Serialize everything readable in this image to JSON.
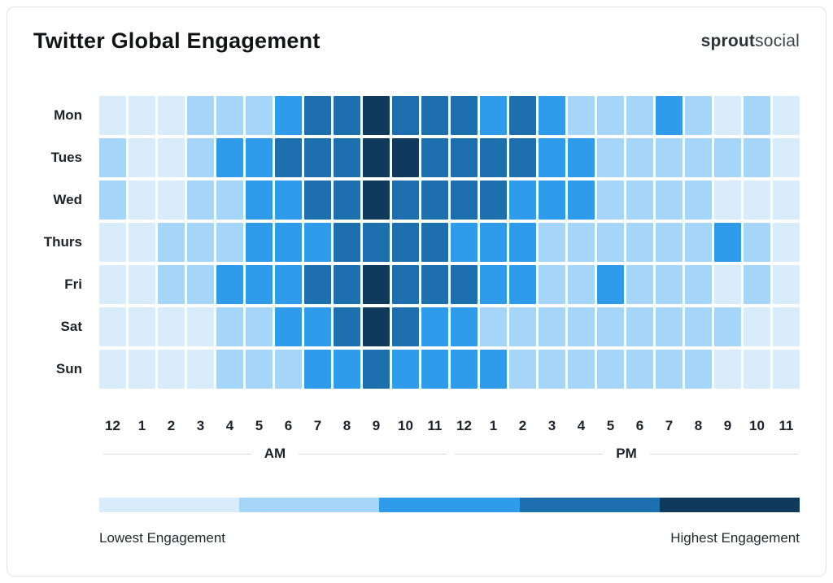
{
  "header": {
    "title": "Twitter Global Engagement",
    "logo_bold": "sprout",
    "logo_light": "social"
  },
  "axis": {
    "am_label": "AM",
    "pm_label": "PM"
  },
  "legend": {
    "lowest": "Lowest Engagement",
    "highest": "Highest Engagement"
  },
  "chart_data": {
    "type": "heatmap",
    "title": "Twitter Global Engagement",
    "rows": [
      "Mon",
      "Tues",
      "Wed",
      "Thurs",
      "Fri",
      "Sat",
      "Sun"
    ],
    "columns": [
      "12",
      "1",
      "2",
      "3",
      "4",
      "5",
      "6",
      "7",
      "8",
      "9",
      "10",
      "11",
      "12",
      "1",
      "2",
      "3",
      "4",
      "5",
      "6",
      "7",
      "8",
      "9",
      "10",
      "11"
    ],
    "column_periods": [
      "AM",
      "PM"
    ],
    "values": [
      [
        1,
        1,
        1,
        2,
        2,
        2,
        3,
        4,
        4,
        5,
        4,
        4,
        4,
        3,
        4,
        3,
        2,
        2,
        2,
        3,
        2,
        1,
        2,
        1
      ],
      [
        2,
        1,
        1,
        2,
        3,
        3,
        4,
        4,
        4,
        5,
        5,
        4,
        4,
        4,
        4,
        3,
        3,
        2,
        2,
        2,
        2,
        2,
        2,
        1
      ],
      [
        2,
        1,
        1,
        2,
        2,
        3,
        3,
        4,
        4,
        5,
        4,
        4,
        4,
        4,
        3,
        3,
        3,
        2,
        2,
        2,
        2,
        1,
        1,
        1
      ],
      [
        1,
        1,
        2,
        2,
        2,
        3,
        3,
        3,
        4,
        4,
        4,
        4,
        3,
        3,
        3,
        2,
        2,
        2,
        2,
        2,
        2,
        3,
        2,
        1
      ],
      [
        1,
        1,
        2,
        2,
        3,
        3,
        3,
        4,
        4,
        5,
        4,
        4,
        4,
        3,
        3,
        2,
        2,
        3,
        2,
        2,
        2,
        1,
        2,
        1
      ],
      [
        1,
        1,
        1,
        1,
        2,
        2,
        3,
        3,
        4,
        5,
        4,
        3,
        3,
        2,
        2,
        2,
        2,
        2,
        2,
        2,
        2,
        2,
        1,
        1
      ],
      [
        1,
        1,
        1,
        1,
        2,
        2,
        2,
        3,
        3,
        4,
        3,
        3,
        3,
        3,
        2,
        2,
        2,
        2,
        2,
        2,
        2,
        1,
        1,
        1
      ]
    ],
    "scale": {
      "min": 1,
      "max": 5,
      "colors": [
        "#d8ecfb",
        "#a5d5f8",
        "#2e9ceb",
        "#1d6fae",
        "#0f3a5c"
      ],
      "min_label": "Lowest Engagement",
      "max_label": "Highest Engagement"
    }
  }
}
